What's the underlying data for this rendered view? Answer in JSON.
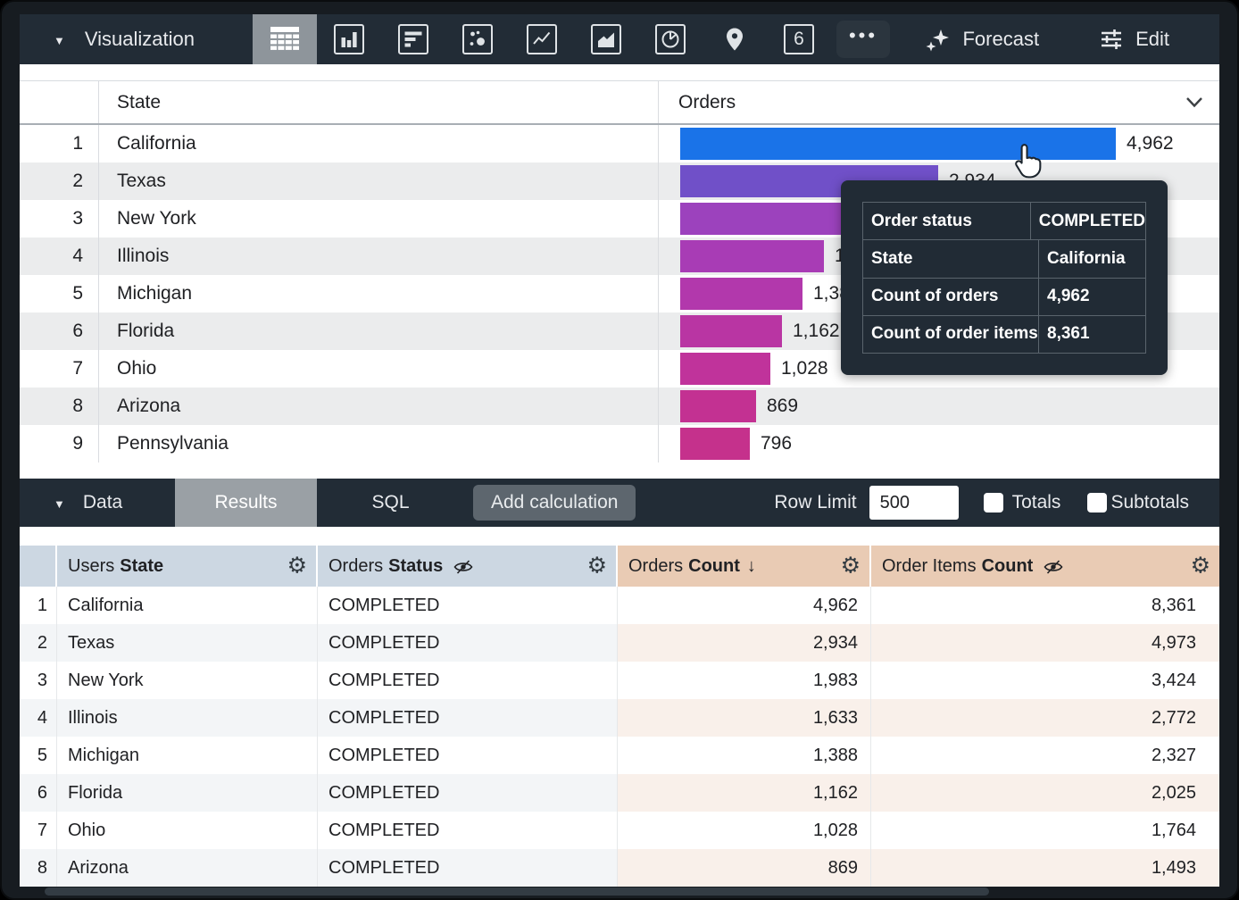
{
  "icons": {
    "gear": "⚙",
    "dropdown": "▼",
    "ellipsis": "•••",
    "sort_desc": "↓"
  },
  "colors": {
    "toolbar_bg": "#222c36",
    "selected_icon_bg": "#8e959b",
    "results_tab_bg": "#9aa0a5",
    "dimension_header_bg": "#ccd7e2",
    "measure_header_bg": "#e9cbb4",
    "top_bar_color": "#1a73e8"
  },
  "viz_toolbar": {
    "section_label": "Visualization",
    "chart_types": [
      "table",
      "column",
      "bar",
      "scatter",
      "line",
      "area",
      "pie",
      "map",
      "single-value",
      "more"
    ],
    "selected_chart_type": "table",
    "single_value_text": "6",
    "forecast_label": "Forecast",
    "edit_label": "Edit"
  },
  "viz_table": {
    "state_header": "State",
    "orders_header": "Orders",
    "rows": [
      {
        "n": "1",
        "state": "California",
        "value": "4,962",
        "count": 4962,
        "bar_color": "#1a73e8"
      },
      {
        "n": "2",
        "state": "Texas",
        "value": "2,934",
        "count": 2934,
        "bar_color": "#7050c8"
      },
      {
        "n": "3",
        "state": "New York",
        "value": "1,983",
        "count": 1983,
        "bar_color": "#9c42bd"
      },
      {
        "n": "4",
        "state": "Illinois",
        "value": "1,633",
        "count": 1633,
        "bar_color": "#a83cb5"
      },
      {
        "n": "5",
        "state": "Michigan",
        "value": "1,388",
        "count": 1388,
        "bar_color": "#b238ac"
      },
      {
        "n": "6",
        "state": "Florida",
        "value": "1,162",
        "count": 1162,
        "bar_color": "#b935a3"
      },
      {
        "n": "7",
        "state": "Ohio",
        "value": "1,028",
        "count": 1028,
        "bar_color": "#c0339b"
      },
      {
        "n": "8",
        "state": "Arizona",
        "value": "869",
        "count": 869,
        "bar_color": "#c33192"
      },
      {
        "n": "9",
        "state": "Pennsylvania",
        "value": "796",
        "count": 796,
        "bar_color": "#c5318c"
      }
    ]
  },
  "tooltip": {
    "rows": [
      {
        "label": "Order status",
        "value": "COMPLETED"
      },
      {
        "label": "State",
        "value": "California"
      },
      {
        "label": "Count of orders",
        "value": "4,962"
      },
      {
        "label": "Count of order items",
        "value": "8,361"
      }
    ]
  },
  "data_toolbar": {
    "section_label": "Data",
    "results_tab": "Results",
    "sql_tab": "SQL",
    "add_calculation_label": "Add calculation",
    "row_limit_label": "Row Limit",
    "row_limit_value": "500",
    "totals_label": "Totals",
    "subtotals_label": "Subtotals",
    "totals_checked": false,
    "subtotals_checked": false
  },
  "data_table": {
    "headers": [
      {
        "prefix": "Users",
        "bold": "State"
      },
      {
        "prefix": "Orders",
        "bold": "Status",
        "hidden": true
      },
      {
        "prefix": "Orders",
        "bold": "Count",
        "sorted": "desc"
      },
      {
        "prefix": "Order Items",
        "bold": "Count",
        "hidden": true
      }
    ],
    "rows": [
      {
        "n": "1",
        "state": "California",
        "status": "COMPLETED",
        "orders_count": "4,962",
        "order_items_count": "8,361"
      },
      {
        "n": "2",
        "state": "Texas",
        "status": "COMPLETED",
        "orders_count": "2,934",
        "order_items_count": "4,973"
      },
      {
        "n": "3",
        "state": "New York",
        "status": "COMPLETED",
        "orders_count": "1,983",
        "order_items_count": "3,424"
      },
      {
        "n": "4",
        "state": "Illinois",
        "status": "COMPLETED",
        "orders_count": "1,633",
        "order_items_count": "2,772"
      },
      {
        "n": "5",
        "state": "Michigan",
        "status": "COMPLETED",
        "orders_count": "1,388",
        "order_items_count": "2,327"
      },
      {
        "n": "6",
        "state": "Florida",
        "status": "COMPLETED",
        "orders_count": "1,162",
        "order_items_count": "2,025"
      },
      {
        "n": "7",
        "state": "Ohio",
        "status": "COMPLETED",
        "orders_count": "1,028",
        "order_items_count": "1,764"
      },
      {
        "n": "8",
        "state": "Arizona",
        "status": "COMPLETED",
        "orders_count": "869",
        "order_items_count": "1,493"
      }
    ]
  }
}
